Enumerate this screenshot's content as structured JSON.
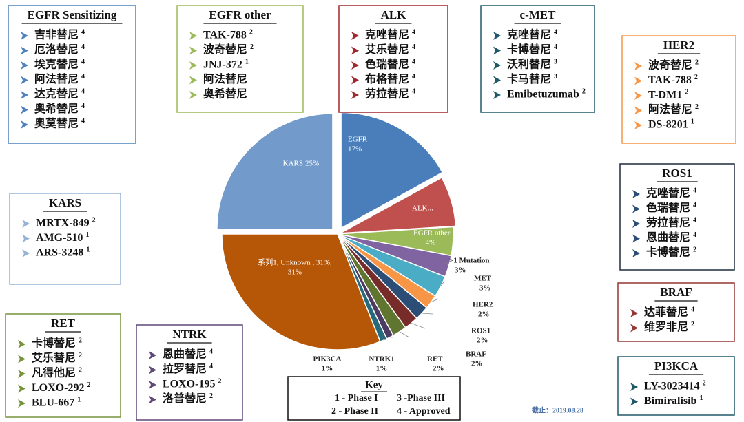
{
  "chart_data": {
    "type": "pie",
    "categories": [
      "EGFR",
      "ALK...",
      "EGFR other",
      ">1 Mutation",
      "MET",
      "HER2",
      "ROS1",
      "BRAF",
      "RET",
      "NTRK1",
      "PIK3CA",
      "系列1, Unknown , 31%,",
      "KARS"
    ],
    "values": [
      17,
      7,
      4,
      3,
      3,
      2,
      2,
      2,
      2,
      1,
      1,
      31,
      25
    ],
    "value_labels": [
      "17%",
      null,
      "4%",
      "3%",
      "3%",
      "2%",
      "2%",
      "2%",
      "2%",
      "1%",
      "1%",
      "31%",
      "25%"
    ],
    "colors": [
      "#4a7ebb",
      "#c0504d",
      "#9bbb59",
      "#8064a2",
      "#4bacc6",
      "#f79646",
      "#2c4d75",
      "#772c2a",
      "#5f7530",
      "#4d3b62",
      "#276a7c",
      "#b65708",
      "#729aca"
    ]
  },
  "panels": [
    {
      "title": "EGFR Sensitizing",
      "color": "#4f81bd",
      "items": [
        {
          "name": "吉非替尼",
          "phase": "4"
        },
        {
          "name": "厄洛替尼",
          "phase": "4"
        },
        {
          "name": "埃克替尼",
          "phase": "4"
        },
        {
          "name": "阿法替尼",
          "phase": "4"
        },
        {
          "name": "达克替尼",
          "phase": "4"
        },
        {
          "name": "奥希替尼",
          "phase": "4"
        },
        {
          "name": "奥莫替尼",
          "phase": "4"
        }
      ]
    },
    {
      "title": "EGFR other",
      "color": "#9bbb59",
      "items": [
        {
          "name": "TAK-788",
          "phase": "2"
        },
        {
          "name": "波奇替尼",
          "phase": "2"
        },
        {
          "name": "JNJ-372",
          "phase": "1"
        },
        {
          "name": "阿法替尼",
          "phase": null
        },
        {
          "name": "奥希替尼",
          "phase": null
        }
      ]
    },
    {
      "title": "ALK",
      "color": "#a0282c",
      "items": [
        {
          "name": "克唑替尼",
          "phase": "4"
        },
        {
          "name": "艾乐替尼",
          "phase": "4"
        },
        {
          "name": "色瑞替尼",
          "phase": "4"
        },
        {
          "name": "布格替尼",
          "phase": "4"
        },
        {
          "name": "劳拉替尼",
          "phase": "4"
        }
      ]
    },
    {
      "title": "c-MET",
      "color": "#215868",
      "items": [
        {
          "name": "克唑替尼",
          "phase": "4"
        },
        {
          "name": "卡博替尼",
          "phase": "4"
        },
        {
          "name": "沃利替尼",
          "phase": "3"
        },
        {
          "name": "卡马替尼",
          "phase": "3"
        },
        {
          "name": "Emibetuzumab",
          "phase": "2"
        }
      ]
    },
    {
      "title": "HER2",
      "color": "#f79646",
      "items": [
        {
          "name": "波奇替尼",
          "phase": "2"
        },
        {
          "name": "TAK-788",
          "phase": "2"
        },
        {
          "name": "T-DM1",
          "phase": "2"
        },
        {
          "name": "阿法替尼",
          "phase": "2"
        },
        {
          "name": "DS-8201",
          "phase": "1"
        }
      ]
    },
    {
      "title": "ROS1",
      "color": "#1f2d3d",
      "items": [
        {
          "name": "克唑替尼",
          "phase": "4"
        },
        {
          "name": "色瑞替尼",
          "phase": "4"
        },
        {
          "name": "劳拉替尼",
          "phase": "4"
        },
        {
          "name": "恩曲替尼",
          "phase": "4"
        },
        {
          "name": "卡博替尼",
          "phase": "2"
        }
      ]
    },
    {
      "title": "BRAF",
      "color": "#953735",
      "items": [
        {
          "name": "达菲替尼",
          "phase": "4"
        },
        {
          "name": "维罗非尼",
          "phase": "2"
        }
      ]
    },
    {
      "title": "PI3KCA",
      "color": "#215868",
      "items": [
        {
          "name": "LY-3023414",
          "phase": "2"
        },
        {
          "name": "Bimiralisib",
          "phase": "1"
        }
      ]
    },
    {
      "title": "KARS",
      "color": "#95b3d7",
      "items": [
        {
          "name": "MRTX-849",
          "phase": "2"
        },
        {
          "name": "AMG-510",
          "phase": "1"
        },
        {
          "name": "ARS-3248",
          "phase": "1"
        }
      ]
    },
    {
      "title": "RET",
      "color": "#77933c",
      "items": [
        {
          "name": "卡博替尼",
          "phase": "2"
        },
        {
          "name": "艾乐替尼",
          "phase": "2"
        },
        {
          "name": "凡得他尼",
          "phase": "2"
        },
        {
          "name": "LOXO-292",
          "phase": "2"
        },
        {
          "name": "BLU-667",
          "phase": "1"
        }
      ]
    },
    {
      "title": "NTRK",
      "color": "#5f497a",
      "items": [
        {
          "name": "恩曲替尼",
          "phase": "4"
        },
        {
          "name": "拉罗替尼",
          "phase": "4"
        },
        {
          "name": "LOXO-195",
          "phase": "2"
        },
        {
          "name": "洛普替尼",
          "phase": "2"
        }
      ]
    }
  ],
  "key": {
    "title": "Key",
    "entries": [
      "1 - Phase I",
      "3 -Phase III",
      "2 - Phase II",
      "4 - Approved"
    ]
  },
  "date_note": "截止：2019.08.28"
}
